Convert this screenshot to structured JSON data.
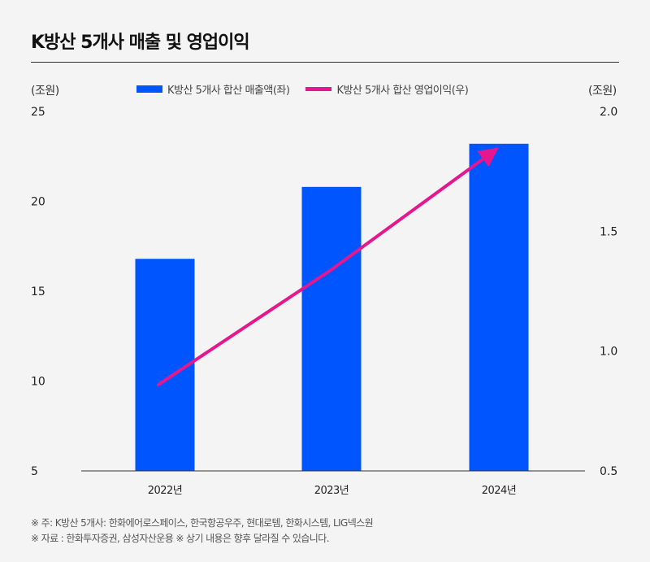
{
  "title": "K방산 5개사 매출 및 영업이익",
  "units": {
    "left": "(조원)",
    "right": "(조원)"
  },
  "legend": {
    "bar_label": "K방산 5개사 합산 매출액(좌)",
    "line_label": "K방산 5개사 합산 영업이익(우)"
  },
  "colors": {
    "bar": "#0055ff",
    "line": "#e5178f"
  },
  "chart_data": {
    "type": "bar",
    "categories": [
      "2022년",
      "2023년",
      "2024년"
    ],
    "series": [
      {
        "name": "K방산 5개사 합산 매출액(좌)",
        "type": "bar",
        "axis": "left",
        "values": [
          16.8,
          20.8,
          23.2
        ]
      },
      {
        "name": "K방산 5개사 합산 영업이익(우)",
        "type": "line",
        "axis": "right",
        "values": [
          0.86,
          1.34,
          1.83
        ]
      }
    ],
    "ylim_left": [
      5,
      25
    ],
    "yticks_left": [
      "5",
      "10",
      "15",
      "20",
      "25"
    ],
    "ylim_right": [
      0.5,
      2.0
    ],
    "yticks_right": [
      "0.5",
      "1.0",
      "1.5",
      "2.0"
    ],
    "line_arrow": true,
    "grid": false
  },
  "notes": [
    "※ 주: K방산 5개사: 한화에어로스페이스, 한국항공우주, 현대로템, 한화시스템, LIG넥스원",
    "※ 자료 : 한화투자증권, 삼성자산운용 ※ 상기 내용은 향후 달라질 수 있습니다."
  ]
}
